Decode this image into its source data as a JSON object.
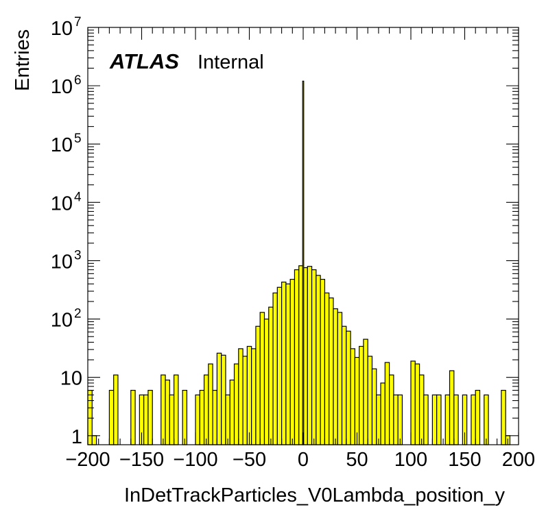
{
  "chart_data": {
    "type": "bar",
    "subtype": "histogram",
    "title": "",
    "xlabel": "InDetTrackParticles_V0Lambda_position_y",
    "ylabel": "Entries",
    "xlim": [
      -200,
      200
    ],
    "ylim": [
      0.7,
      10000000
    ],
    "yscale": "log",
    "grid": false,
    "legend": "none",
    "bin_width": 4,
    "x_tick_labels": [
      "−200",
      "−150",
      "−100",
      "−50",
      "0",
      "50",
      "100",
      "150",
      "200"
    ],
    "x_ticks": [
      -200,
      -150,
      -100,
      -50,
      0,
      50,
      100,
      150,
      200
    ],
    "y_ticks": [
      1,
      10,
      100,
      1000,
      10000,
      100000,
      1000000,
      10000000
    ],
    "y_tick_labels": [
      {
        "base": "1",
        "exp": ""
      },
      {
        "base": "10",
        "exp": ""
      },
      {
        "base": "10",
        "exp": "2"
      },
      {
        "base": "10",
        "exp": "3"
      },
      {
        "base": "10",
        "exp": "4"
      },
      {
        "base": "10",
        "exp": "5"
      },
      {
        "base": "10",
        "exp": "6"
      },
      {
        "base": "10",
        "exp": "7"
      }
    ],
    "label": {
      "experiment": "ATLAS",
      "status": "Internal"
    },
    "colors": {
      "fill": "#ffff00",
      "line": "#000000"
    },
    "bins": [
      {
        "x": -198,
        "value": 6
      },
      {
        "x": -194,
        "value": 1
      },
      {
        "x": -190,
        "value": 0
      },
      {
        "x": -186,
        "value": 0
      },
      {
        "x": -182,
        "value": 0
      },
      {
        "x": -178,
        "value": 6
      },
      {
        "x": -174,
        "value": 11
      },
      {
        "x": -170,
        "value": 0
      },
      {
        "x": -166,
        "value": 0
      },
      {
        "x": -162,
        "value": 0
      },
      {
        "x": -158,
        "value": 6
      },
      {
        "x": -154,
        "value": 0
      },
      {
        "x": -150,
        "value": 5
      },
      {
        "x": -146,
        "value": 5
      },
      {
        "x": -142,
        "value": 6
      },
      {
        "x": -138,
        "value": 0
      },
      {
        "x": -134,
        "value": 0
      },
      {
        "x": -130,
        "value": 11
      },
      {
        "x": -126,
        "value": 9
      },
      {
        "x": -122,
        "value": 5
      },
      {
        "x": -118,
        "value": 11
      },
      {
        "x": -114,
        "value": 0
      },
      {
        "x": -110,
        "value": 6
      },
      {
        "x": -106,
        "value": 0
      },
      {
        "x": -102,
        "value": 0
      },
      {
        "x": -98,
        "value": 5
      },
      {
        "x": -94,
        "value": 6
      },
      {
        "x": -90,
        "value": 11
      },
      {
        "x": -86,
        "value": 17
      },
      {
        "x": -82,
        "value": 6
      },
      {
        "x": -78,
        "value": 26
      },
      {
        "x": -74,
        "value": 24
      },
      {
        "x": -70,
        "value": 5
      },
      {
        "x": -66,
        "value": 9
      },
      {
        "x": -62,
        "value": 17
      },
      {
        "x": -58,
        "value": 31
      },
      {
        "x": -54,
        "value": 23
      },
      {
        "x": -50,
        "value": 34
      },
      {
        "x": -46,
        "value": 31
      },
      {
        "x": -42,
        "value": 75
      },
      {
        "x": -38,
        "value": 130
      },
      {
        "x": -34,
        "value": 100
      },
      {
        "x": -30,
        "value": 160
      },
      {
        "x": -26,
        "value": 280
      },
      {
        "x": -22,
        "value": 350
      },
      {
        "x": -18,
        "value": 430
      },
      {
        "x": -14,
        "value": 400
      },
      {
        "x": -10,
        "value": 480
      },
      {
        "x": -6,
        "value": 700
      },
      {
        "x": -2,
        "value": 820
      },
      {
        "x": 2,
        "value": 760
      },
      {
        "x": 6,
        "value": 800
      },
      {
        "x": 10,
        "value": 700
      },
      {
        "x": 14,
        "value": 560
      },
      {
        "x": 18,
        "value": 480
      },
      {
        "x": 22,
        "value": 280
      },
      {
        "x": 26,
        "value": 230
      },
      {
        "x": 30,
        "value": 150
      },
      {
        "x": 34,
        "value": 130
      },
      {
        "x": 38,
        "value": 75
      },
      {
        "x": 42,
        "value": 62
      },
      {
        "x": 46,
        "value": 31
      },
      {
        "x": 50,
        "value": 22
      },
      {
        "x": 54,
        "value": 34
      },
      {
        "x": 58,
        "value": 45
      },
      {
        "x": 62,
        "value": 23
      },
      {
        "x": 66,
        "value": 14
      },
      {
        "x": 70,
        "value": 5
      },
      {
        "x": 74,
        "value": 8
      },
      {
        "x": 78,
        "value": 18
      },
      {
        "x": 82,
        "value": 11
      },
      {
        "x": 86,
        "value": 5
      },
      {
        "x": 90,
        "value": 5
      },
      {
        "x": 94,
        "value": 0
      },
      {
        "x": 98,
        "value": 0
      },
      {
        "x": 102,
        "value": 19
      },
      {
        "x": 106,
        "value": 17
      },
      {
        "x": 110,
        "value": 11
      },
      {
        "x": 114,
        "value": 5
      },
      {
        "x": 118,
        "value": 0
      },
      {
        "x": 122,
        "value": 5
      },
      {
        "x": 126,
        "value": 5
      },
      {
        "x": 130,
        "value": 0
      },
      {
        "x": 134,
        "value": 5
      },
      {
        "x": 138,
        "value": 13
      },
      {
        "x": 142,
        "value": 5
      },
      {
        "x": 146,
        "value": 0
      },
      {
        "x": 150,
        "value": 5
      },
      {
        "x": 154,
        "value": 0
      },
      {
        "x": 158,
        "value": 5
      },
      {
        "x": 162,
        "value": 6
      },
      {
        "x": 166,
        "value": 0
      },
      {
        "x": 170,
        "value": 5
      },
      {
        "x": 174,
        "value": 0
      },
      {
        "x": 178,
        "value": 0
      },
      {
        "x": 182,
        "value": 0
      },
      {
        "x": 186,
        "value": 6
      },
      {
        "x": 190,
        "value": 1
      },
      {
        "x": 194,
        "value": 0
      },
      {
        "x": 198,
        "value": 0
      }
    ],
    "peak": {
      "x": 0,
      "value": 1200000
    }
  }
}
